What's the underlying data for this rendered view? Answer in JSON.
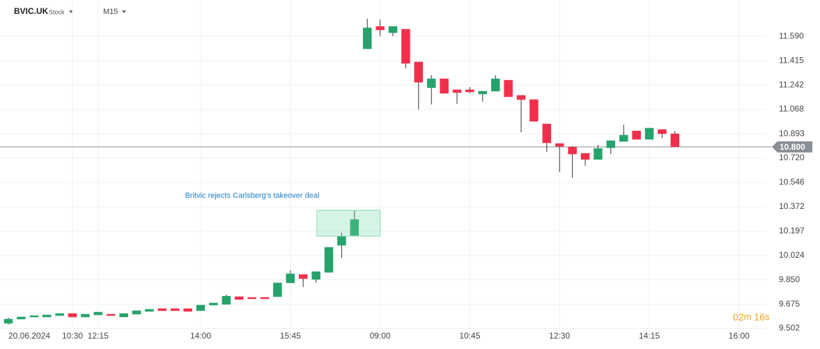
{
  "header": {
    "symbol": "BVIC.UK",
    "asset_type": "Stock",
    "interval": "M15"
  },
  "countdown": [
    "02",
    "m",
    "16",
    "s"
  ],
  "chart_data": {
    "type": "candlestick",
    "up_color": "#26a36b",
    "down_color": "#f0304b",
    "categories": [
      "20.06.2024",
      null,
      null,
      null,
      null,
      "10:30",
      null,
      "12:15",
      null,
      null,
      null,
      null,
      null,
      null,
      null,
      "14:00",
      null,
      null,
      null,
      null,
      null,
      null,
      "15:45",
      null,
      null,
      null,
      null,
      null,
      null,
      "09:00",
      null,
      null,
      null,
      null,
      null,
      null,
      "10:45",
      null,
      null,
      null,
      null,
      null,
      null,
      "12:30",
      null,
      null,
      null,
      null,
      null,
      null,
      "14:15",
      null,
      null,
      null,
      null,
      null,
      null,
      "16:00"
    ],
    "open": [
      9.539,
      9.569,
      9.584,
      9.584,
      9.594,
      9.609,
      9.584,
      9.599,
      9.604,
      9.584,
      9.604,
      9.624,
      9.644,
      9.644,
      9.644,
      9.629,
      9.669,
      9.674,
      9.729,
      9.724,
      9.724,
      9.729,
      9.828,
      9.888,
      9.853,
      9.903,
      10.097,
      10.167,
      11.501,
      11.661,
      11.616,
      11.641,
      11.407,
      11.223,
      11.287,
      11.208,
      11.208,
      11.178,
      11.198,
      11.277,
      11.168,
      11.138,
      10.964,
      10.824,
      10.799,
      10.754,
      10.71,
      10.794,
      10.839,
      10.914,
      10.854,
      10.924,
      10.894,
      null,
      null,
      null,
      null,
      null
    ],
    "high": [
      9.579,
      9.584,
      9.594,
      9.599,
      9.609,
      9.609,
      9.604,
      9.619,
      9.604,
      9.609,
      9.629,
      9.639,
      9.644,
      9.644,
      9.644,
      9.669,
      9.684,
      9.743,
      9.729,
      9.724,
      9.724,
      9.828,
      9.918,
      9.888,
      9.908,
      10.082,
      10.187,
      10.346,
      11.716,
      11.711,
      11.661,
      11.641,
      11.407,
      11.312,
      11.287,
      11.208,
      11.227,
      11.198,
      11.312,
      11.277,
      11.168,
      11.138,
      10.964,
      10.824,
      10.804,
      10.754,
      10.814,
      10.844,
      10.959,
      10.914,
      10.934,
      10.924,
      10.914,
      null,
      null,
      null,
      null,
      null
    ],
    "low": [
      9.529,
      9.569,
      9.584,
      9.584,
      9.594,
      9.584,
      9.584,
      9.599,
      9.594,
      9.584,
      9.604,
      9.624,
      9.629,
      9.629,
      9.624,
      9.629,
      9.669,
      9.674,
      9.709,
      9.714,
      9.714,
      9.729,
      9.828,
      9.798,
      9.828,
      9.903,
      10.007,
      10.167,
      11.501,
      11.591,
      11.591,
      11.362,
      11.068,
      11.103,
      11.183,
      11.108,
      11.183,
      11.123,
      11.198,
      11.158,
      10.904,
      10.983,
      10.764,
      10.62,
      10.58,
      10.665,
      10.71,
      10.749,
      10.839,
      10.854,
      10.854,
      10.864,
      10.8,
      null,
      null,
      null,
      null,
      null
    ],
    "close": [
      9.569,
      9.584,
      9.594,
      9.599,
      9.609,
      9.584,
      9.604,
      9.619,
      9.594,
      9.609,
      9.629,
      9.639,
      9.629,
      9.629,
      9.624,
      9.669,
      9.684,
      9.733,
      9.709,
      9.714,
      9.714,
      9.828,
      9.893,
      9.858,
      9.908,
      10.082,
      10.162,
      10.281,
      11.651,
      11.636,
      11.661,
      11.397,
      11.262,
      11.287,
      11.183,
      11.188,
      11.193,
      11.198,
      11.287,
      11.158,
      11.138,
      10.983,
      10.829,
      10.804,
      10.749,
      10.71,
      10.789,
      10.844,
      10.884,
      10.854,
      10.934,
      10.894,
      10.8,
      null,
      null,
      null,
      null,
      null
    ],
    "ylim": [
      9.4,
      11.85
    ],
    "yticks": [
      {
        "value": 11.59,
        "label": "11.590"
      },
      11.415,
      11.242,
      11.068,
      10.893,
      {
        "value": 10.72,
        "label": "10.720"
      },
      10.546,
      10.372,
      10.197,
      10.024,
      {
        "value": 9.85,
        "label": "9.850"
      },
      9.675,
      9.502
    ],
    "grid": true,
    "current_price": {
      "value": 10.8,
      "label": "10.800"
    },
    "annotation": {
      "text": "Britvic rejects Carlsberg's takeover deal",
      "index": 27
    }
  }
}
